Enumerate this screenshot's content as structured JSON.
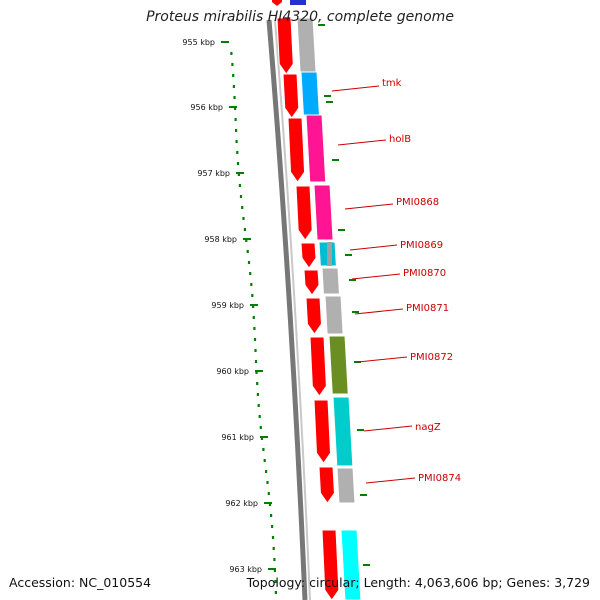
{
  "title": "Proteus mirabilis HI4320, complete genome",
  "footer": {
    "accession": "Accession: NC_010554",
    "topology": "Topology: circular; Length: 4,063,606 bp; Genes: 3,729"
  },
  "kbp_labels": [
    "955 kbp",
    "956 kbp",
    "957 kbp",
    "958 kbp",
    "959 kbp",
    "960 kbp",
    "961 kbp",
    "962 kbp",
    "963 kbp"
  ],
  "genes": [
    {
      "name": "tmk",
      "color": "#00aaff"
    },
    {
      "name": "holB",
      "color": "#ff1493"
    },
    {
      "name": "PMI0868",
      "color": "#ff1493"
    },
    {
      "name": "PMI0869",
      "color": "#00bcd4"
    },
    {
      "name": "PMI0870",
      "color": "#b0b0b0"
    },
    {
      "name": "PMI0871",
      "color": "#b0b0b0"
    },
    {
      "name": "PMI0872",
      "color": "#6b8e23"
    },
    {
      "name": "nagZ",
      "color": "#00cccc"
    },
    {
      "name": "PMI0874",
      "color": "#b0b0b0"
    }
  ],
  "colors": {
    "cds": "#ff0000",
    "unclassified": "#b0b0b0",
    "backbone": "#777777",
    "gc_skew": "#008000",
    "label": "#cc0000"
  }
}
